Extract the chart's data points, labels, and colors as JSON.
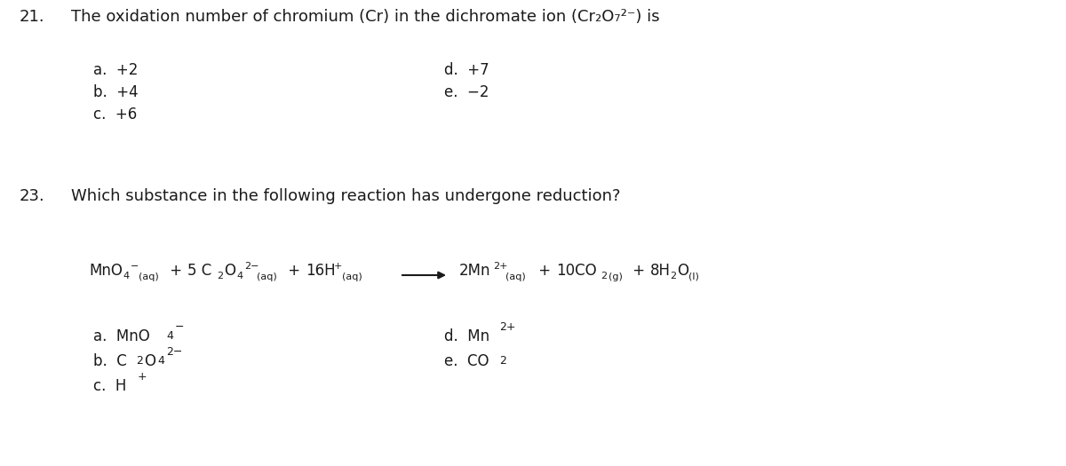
{
  "background_color": "#ffffff",
  "figsize": [
    12.0,
    5.25
  ],
  "dpi": 100,
  "text_color": "#1a1a1a",
  "font_family": "DejaVu Sans",
  "font_size_num": 13,
  "font_size_question": 13,
  "font_size_answer": 12,
  "font_size_eq_main": 12,
  "font_size_eq_small": 8,
  "q21_num": "21.",
  "q21_text": "The oxidation number of chromium (Cr) in the dichromate ion (Cr₂O₇²⁻) is",
  "q21_options_left": [
    "a.  +2",
    "b.  +4",
    "c.  +6"
  ],
  "q21_options_right": [
    "d.  +7",
    "e.  −2"
  ],
  "q23_num": "23.",
  "q23_text": "Which substance in the following reaction has undergone reduction?"
}
